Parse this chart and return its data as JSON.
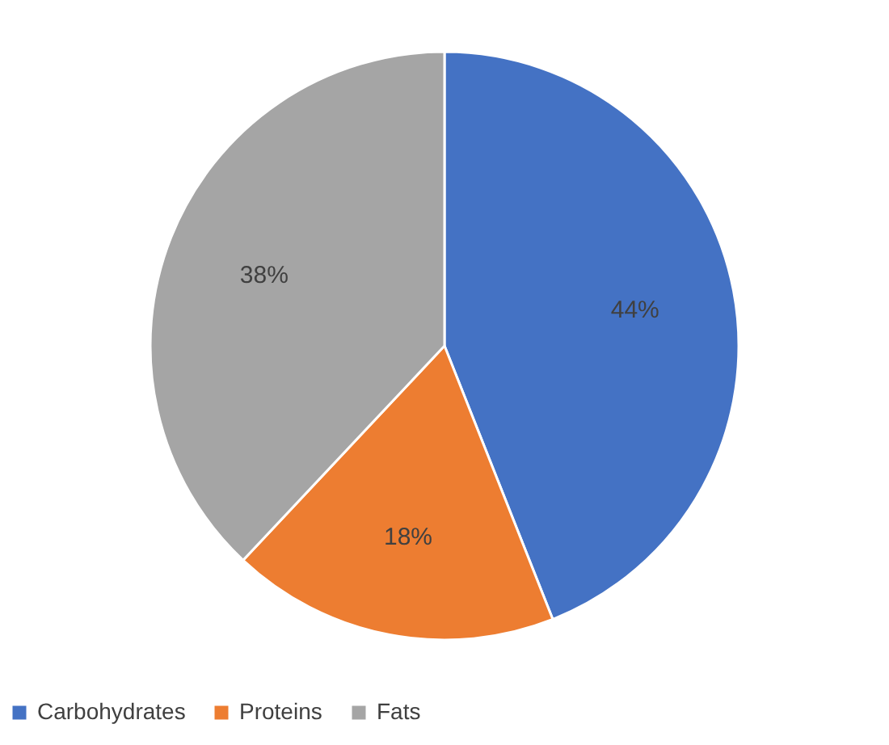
{
  "chart_data": {
    "type": "pie",
    "categories": [
      "Carbohydrates",
      "Proteins",
      "Fats"
    ],
    "values": [
      44,
      18,
      38
    ],
    "colors": [
      "#4472c4",
      "#ed7d31",
      "#a5a5a5"
    ],
    "value_labels": [
      "44%",
      "18%",
      "38%"
    ],
    "legend": "bottom"
  }
}
